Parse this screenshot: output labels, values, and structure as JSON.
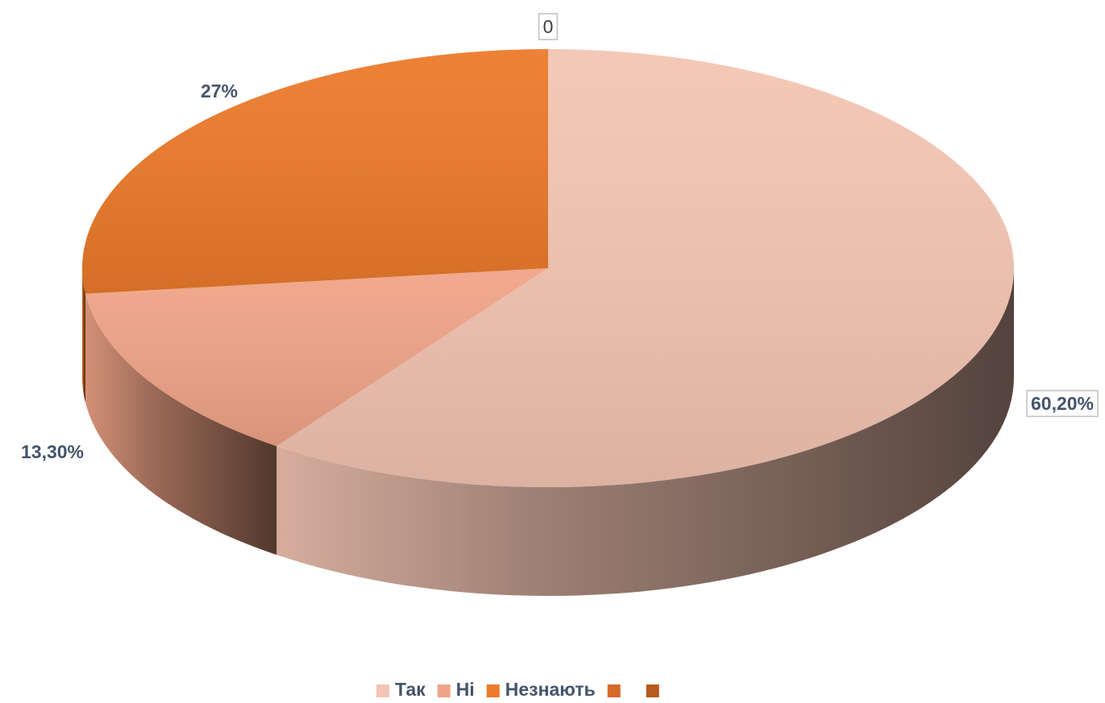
{
  "chart_data": {
    "type": "pie3d",
    "categories": [
      "Так",
      "Ні",
      "Незнають",
      null,
      null
    ],
    "values": [
      60.2,
      13.3,
      27,
      0,
      null
    ],
    "value_labels": [
      "60,20%",
      "13,30%",
      "27%",
      "0",
      null
    ],
    "colors": [
      "#f4c5b3",
      "#f0a487",
      "#ec7a2a",
      "#d8692a",
      "#b65a20"
    ],
    "legend": "bottom"
  }
}
